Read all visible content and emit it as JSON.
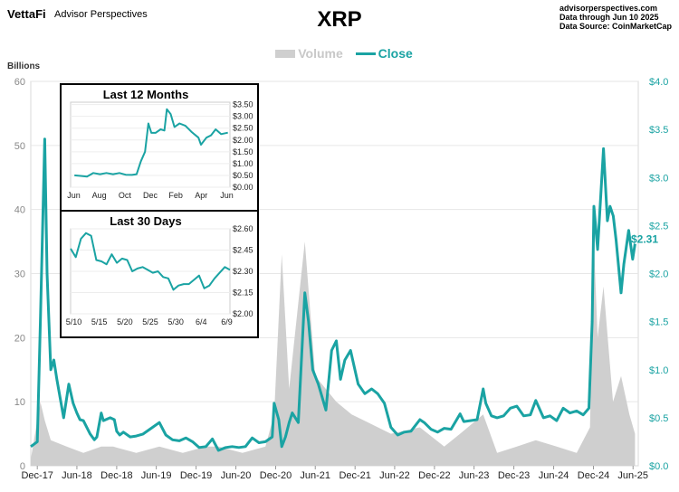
{
  "header": {
    "brand": "VettaFi",
    "brand_sub": "Advisor Perspectives",
    "source_lines": [
      "advisorperspectives.com",
      "Data through Jun 10 2025",
      "Data Source: CoinMarketCap"
    ]
  },
  "chart_data": [
    {
      "type": "line",
      "title": "XRP",
      "ylabel_left": "Billions",
      "legend": [
        "Volume",
        "Close"
      ],
      "colors": {
        "volume": "#cfcfcf",
        "close": "#1aa3a3"
      },
      "x_tick_labels": [
        "Dec-17",
        "Jun-18",
        "Dec-18",
        "Jun-19",
        "Dec-19",
        "Jun-20",
        "Dec-20",
        "Jun-21",
        "Dec-21",
        "Jun-22",
        "Dec-22",
        "Jun-23",
        "Dec-23",
        "Jun-24",
        "Dec-24",
        "Jun-25"
      ],
      "y_left_ticks": [
        0,
        10,
        20,
        30,
        40,
        50,
        60
      ],
      "y_right_ticks": [
        "$0.0",
        "$0.5",
        "$1.0",
        "$1.5",
        "$2.0",
        "$2.5",
        "$3.0",
        "$3.5",
        "$4.0"
      ],
      "ylim_left": [
        0,
        60
      ],
      "ylim_right": [
        0,
        4.0
      ],
      "last_value_label": "$2.31",
      "series": [
        {
          "name": "Close",
          "x": [
            "2017-11-01",
            "2017-12-01",
            "2017-12-15",
            "2018-01-04",
            "2018-01-15",
            "2018-02-01",
            "2018-02-15",
            "2018-03-01",
            "2018-04-01",
            "2018-04-25",
            "2018-05-15",
            "2018-06-01",
            "2018-06-15",
            "2018-07-01",
            "2018-08-01",
            "2018-08-20",
            "2018-09-01",
            "2018-09-21",
            "2018-10-01",
            "2018-11-01",
            "2018-11-20",
            "2018-12-01",
            "2018-12-15",
            "2019-01-01",
            "2019-02-01",
            "2019-03-01",
            "2019-04-01",
            "2019-05-15",
            "2019-06-15",
            "2019-07-15",
            "2019-08-15",
            "2019-09-15",
            "2019-10-15",
            "2019-11-15",
            "2019-12-15",
            "2020-01-15",
            "2020-02-14",
            "2020-03-13",
            "2020-04-15",
            "2020-05-15",
            "2020-06-15",
            "2020-07-15",
            "2020-08-15",
            "2020-09-15",
            "2020-10-15",
            "2020-11-15",
            "2020-11-24",
            "2020-12-15",
            "2020-12-29",
            "2021-01-15",
            "2021-02-01",
            "2021-02-15",
            "2021-03-15",
            "2021-04-14",
            "2021-05-01",
            "2021-05-20",
            "2021-06-15",
            "2021-07-20",
            "2021-08-15",
            "2021-09-06",
            "2021-09-25",
            "2021-10-15",
            "2021-11-10",
            "2021-12-15",
            "2022-01-15",
            "2022-02-15",
            "2022-03-15",
            "2022-04-15",
            "2022-05-15",
            "2022-06-15",
            "2022-07-15",
            "2022-08-15",
            "2022-09-25",
            "2022-10-15",
            "2022-11-15",
            "2022-12-15",
            "2023-01-15",
            "2023-02-15",
            "2023-03-29",
            "2023-04-15",
            "2023-05-15",
            "2023-06-15",
            "2023-07-13",
            "2023-07-25",
            "2023-08-20",
            "2023-09-15",
            "2023-10-15",
            "2023-11-15",
            "2023-12-15",
            "2024-01-15",
            "2024-02-15",
            "2024-03-11",
            "2024-04-15",
            "2024-05-15",
            "2024-06-15",
            "2024-07-15",
            "2024-08-15",
            "2024-09-15",
            "2024-10-15",
            "2024-11-10",
            "2024-11-25",
            "2024-12-03",
            "2024-12-20",
            "2025-01-16",
            "2025-02-03",
            "2025-02-15",
            "2025-03-02",
            "2025-03-15",
            "2025-04-07",
            "2025-04-20",
            "2025-05-12",
            "2025-05-30",
            "2025-06-10"
          ],
          "values": [
            0.2,
            0.25,
            1.5,
            3.4,
            2.0,
            1.0,
            1.1,
            0.9,
            0.5,
            0.85,
            0.65,
            0.55,
            0.48,
            0.47,
            0.33,
            0.27,
            0.3,
            0.55,
            0.47,
            0.5,
            0.48,
            0.36,
            0.32,
            0.35,
            0.3,
            0.31,
            0.33,
            0.4,
            0.45,
            0.32,
            0.27,
            0.26,
            0.29,
            0.25,
            0.19,
            0.2,
            0.28,
            0.16,
            0.19,
            0.2,
            0.19,
            0.2,
            0.29,
            0.24,
            0.25,
            0.3,
            0.65,
            0.48,
            0.2,
            0.3,
            0.45,
            0.55,
            0.45,
            1.8,
            1.5,
            1.0,
            0.85,
            0.58,
            1.2,
            1.3,
            0.9,
            1.1,
            1.2,
            0.85,
            0.75,
            0.8,
            0.75,
            0.65,
            0.4,
            0.32,
            0.35,
            0.36,
            0.48,
            0.45,
            0.38,
            0.35,
            0.39,
            0.38,
            0.54,
            0.46,
            0.47,
            0.48,
            0.8,
            0.65,
            0.52,
            0.5,
            0.52,
            0.6,
            0.62,
            0.52,
            0.53,
            0.68,
            0.5,
            0.52,
            0.47,
            0.6,
            0.55,
            0.57,
            0.53,
            0.6,
            1.5,
            2.7,
            2.25,
            3.3,
            2.55,
            2.7,
            2.6,
            2.35,
            1.8,
            2.1,
            2.45,
            2.15,
            2.31
          ]
        },
        {
          "name": "Volume",
          "x": [
            "2017-11-01",
            "2017-12-15",
            "2018-01-05",
            "2018-02-01",
            "2018-04-15",
            "2018-07-01",
            "2018-09-21",
            "2018-11-15",
            "2019-03-01",
            "2019-06-15",
            "2019-10-01",
            "2020-01-15",
            "2020-03-13",
            "2020-07-01",
            "2020-10-15",
            "2020-11-24",
            "2020-12-29",
            "2021-02-01",
            "2021-04-14",
            "2021-06-01",
            "2021-09-06",
            "2021-11-15",
            "2022-01-15",
            "2022-05-15",
            "2022-09-25",
            "2023-01-15",
            "2023-03-29",
            "2023-07-13",
            "2023-09-15",
            "2023-12-15",
            "2024-03-11",
            "2024-06-15",
            "2024-09-15",
            "2024-11-15",
            "2024-12-03",
            "2024-12-20",
            "2025-01-16",
            "2025-03-01",
            "2025-04-07",
            "2025-05-15",
            "2025-06-10"
          ],
          "values": [
            1,
            10,
            7,
            4,
            3,
            2,
            3,
            3,
            2,
            3,
            2,
            3,
            3,
            2,
            3,
            8,
            33,
            12,
            35,
            14,
            10,
            8,
            7,
            5,
            6,
            3,
            5,
            8,
            2,
            3,
            4,
            3,
            2,
            6,
            35,
            20,
            28,
            10,
            14,
            8,
            5
          ]
        }
      ]
    },
    {
      "type": "line",
      "title": "Last 12 Months",
      "x_tick_labels": [
        "Jun",
        "Aug",
        "Oct",
        "Dec",
        "Feb",
        "Apr",
        "Jun"
      ],
      "y_ticks": [
        "$0.00",
        "$0.50",
        "$1.00",
        "$1.50",
        "$2.00",
        "$2.50",
        "$3.00",
        "$3.50"
      ],
      "ylim": [
        0,
        3.6
      ],
      "series": [
        {
          "name": "Close",
          "x": [
            "2024-06-10",
            "2024-06-25",
            "2024-07-10",
            "2024-07-25",
            "2024-08-10",
            "2024-08-25",
            "2024-09-10",
            "2024-09-25",
            "2024-10-10",
            "2024-10-25",
            "2024-11-05",
            "2024-11-15",
            "2024-11-25",
            "2024-12-03",
            "2024-12-10",
            "2024-12-20",
            "2025-01-01",
            "2025-01-10",
            "2025-01-16",
            "2025-01-25",
            "2025-02-03",
            "2025-02-15",
            "2025-03-01",
            "2025-03-15",
            "2025-04-01",
            "2025-04-07",
            "2025-04-20",
            "2025-05-01",
            "2025-05-12",
            "2025-05-25",
            "2025-06-10"
          ],
          "values": [
            0.5,
            0.48,
            0.45,
            0.6,
            0.55,
            0.6,
            0.55,
            0.6,
            0.53,
            0.52,
            0.55,
            1.1,
            1.5,
            2.7,
            2.3,
            2.3,
            2.45,
            2.4,
            3.3,
            3.1,
            2.55,
            2.7,
            2.6,
            2.35,
            2.1,
            1.8,
            2.1,
            2.2,
            2.45,
            2.25,
            2.31
          ]
        }
      ]
    },
    {
      "type": "line",
      "title": "Last 30 Days",
      "x_tick_labels": [
        "5/10",
        "5/15",
        "5/20",
        "5/25",
        "5/30",
        "6/4",
        "6/9"
      ],
      "y_ticks": [
        "$2.00",
        "$2.15",
        "$2.30",
        "$2.45",
        "$2.60"
      ],
      "ylim": [
        2.0,
        2.6
      ],
      "series": [
        {
          "name": "Close",
          "x": [
            "2025-05-10",
            "2025-05-11",
            "2025-05-12",
            "2025-05-13",
            "2025-05-14",
            "2025-05-15",
            "2025-05-16",
            "2025-05-17",
            "2025-05-18",
            "2025-05-19",
            "2025-05-20",
            "2025-05-21",
            "2025-05-22",
            "2025-05-23",
            "2025-05-24",
            "2025-05-25",
            "2025-05-26",
            "2025-05-27",
            "2025-05-28",
            "2025-05-29",
            "2025-05-30",
            "2025-05-31",
            "2025-06-01",
            "2025-06-02",
            "2025-06-03",
            "2025-06-04",
            "2025-06-05",
            "2025-06-06",
            "2025-06-07",
            "2025-06-08",
            "2025-06-09",
            "2025-06-10"
          ],
          "values": [
            2.46,
            2.4,
            2.53,
            2.57,
            2.55,
            2.38,
            2.37,
            2.35,
            2.42,
            2.36,
            2.39,
            2.38,
            2.3,
            2.32,
            2.33,
            2.31,
            2.29,
            2.3,
            2.26,
            2.25,
            2.17,
            2.2,
            2.21,
            2.21,
            2.24,
            2.27,
            2.18,
            2.2,
            2.25,
            2.29,
            2.33,
            2.31
          ]
        }
      ]
    }
  ]
}
